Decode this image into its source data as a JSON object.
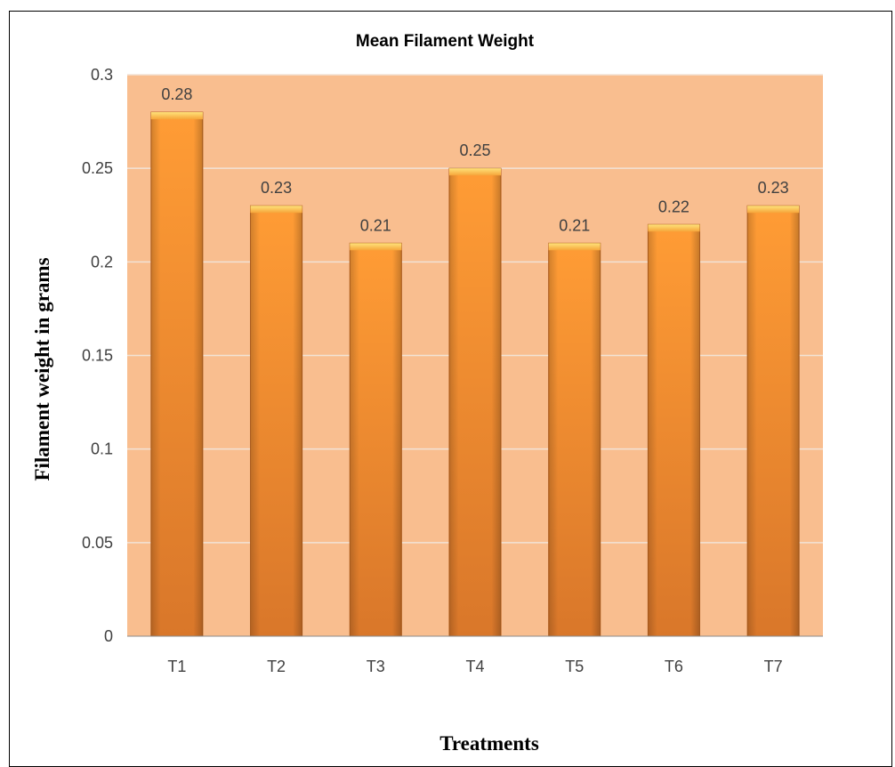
{
  "chart_data": {
    "type": "bar",
    "title": "Mean Filament Weight",
    "xlabel": "Treatments",
    "ylabel": "Filament weight in grams",
    "categories": [
      "T1",
      "T2",
      "T3",
      "T4",
      "T5",
      "T6",
      "T7"
    ],
    "values": [
      0.28,
      0.23,
      0.21,
      0.25,
      0.21,
      0.22,
      0.23
    ],
    "data_labels": [
      "0.28",
      "0.23",
      "0.21",
      "0.25",
      "0.21",
      "0.22",
      "0.23"
    ],
    "ylim": [
      0,
      0.3
    ],
    "yticks": [
      0,
      0.05,
      0.1,
      0.15,
      0.2,
      0.25,
      0.3
    ],
    "ytick_labels": [
      "0",
      "0.05",
      "0.1",
      "0.15",
      "0.2",
      "0.25",
      "0.3"
    ],
    "grid": true,
    "legend": "none",
    "colors": {
      "plot_background": "#F9BE8F",
      "bar_light": "#FF9A33",
      "bar_dark": "#D9772A",
      "bar_cap": "#FFD966",
      "gridline": "#F2E3D6"
    }
  }
}
